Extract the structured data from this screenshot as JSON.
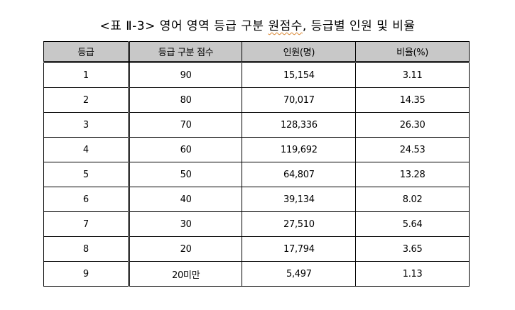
{
  "caption": {
    "prefix": "<표 Ⅱ-3> 영어 영역 등급 구분 ",
    "underlined": "원점수",
    "suffix": ", 등급별 인원 및 비율"
  },
  "table": {
    "headers": [
      "등급",
      "등급 구분 점수",
      "인원(명)",
      "비율(%)"
    ],
    "rows": [
      [
        "1",
        "90",
        "15,154",
        "3.11"
      ],
      [
        "2",
        "80",
        "70,017",
        "14.35"
      ],
      [
        "3",
        "70",
        "128,336",
        "26.30"
      ],
      [
        "4",
        "60",
        "119,692",
        "24.53"
      ],
      [
        "5",
        "50",
        "64,807",
        "13.28"
      ],
      [
        "6",
        "40",
        "39,134",
        "8.02"
      ],
      [
        "7",
        "30",
        "27,510",
        "5.64"
      ],
      [
        "8",
        "20",
        "17,794",
        "3.65"
      ],
      [
        "9",
        "20미만",
        "5,497",
        "1.13"
      ]
    ]
  }
}
